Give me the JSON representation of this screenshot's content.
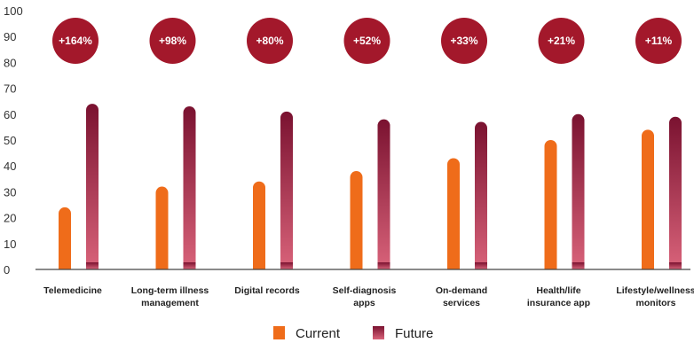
{
  "chart_data": {
    "type": "bar",
    "title": "",
    "xlabel": "",
    "ylabel": "",
    "ylim": [
      0,
      100
    ],
    "yticks": [
      0,
      10,
      20,
      30,
      40,
      50,
      60,
      70,
      80,
      90,
      100
    ],
    "categories": [
      [
        "Telemedicine"
      ],
      [
        "Long-term illness",
        "management"
      ],
      [
        "Digital records"
      ],
      [
        "Self-diagnosis",
        "apps"
      ],
      [
        "On-demand",
        "services"
      ],
      [
        "Health/life",
        "insurance app"
      ],
      [
        "Lifestyle/wellness",
        "monitors"
      ]
    ],
    "series": [
      {
        "name": "Current",
        "values": [
          24,
          32,
          34,
          38,
          43,
          50,
          54
        ]
      },
      {
        "name": "Future",
        "values": [
          64,
          63,
          61,
          58,
          57,
          60,
          59
        ]
      }
    ],
    "annotations": [
      "+164%",
      "+98%",
      "+80%",
      "+52%",
      "+33%",
      "+21%",
      "+11%"
    ],
    "legend_position": "bottom",
    "grid": false,
    "colors": {
      "current": "#ef6c1a",
      "future_top": "#7a1230",
      "future_bottom": "#d9637a",
      "badge": "#a3182b",
      "axis": "#444444"
    }
  }
}
